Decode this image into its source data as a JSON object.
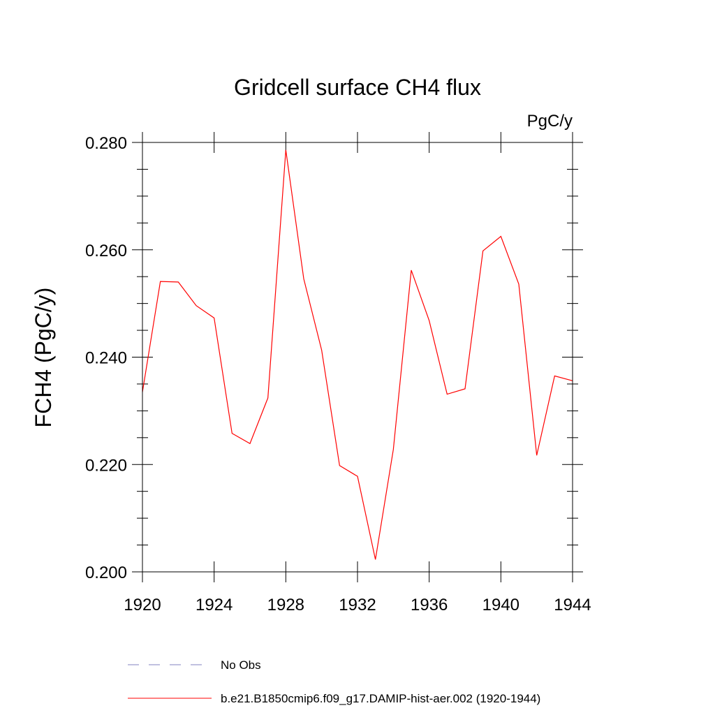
{
  "chart_data": {
    "type": "line",
    "title": "Gridcell surface CH4 flux",
    "units_label": "PgC/y",
    "xlabel": "",
    "ylabel": "FCH4  (PgC/y)",
    "xlim": [
      1920,
      1944
    ],
    "ylim": [
      0.2,
      0.28
    ],
    "x_ticks": [
      1920,
      1924,
      1928,
      1932,
      1936,
      1940,
      1944
    ],
    "y_ticks": [
      "0.200",
      "0.220",
      "0.240",
      "0.260",
      "0.280"
    ],
    "grid": false,
    "legend_position": "bottom",
    "series": [
      {
        "name": "b.e21.B1850cmip6.f09_g17.DAMIP-hist-aer.002 (1920-1944)",
        "color": "#ff0000",
        "style": "solid",
        "x": [
          1920,
          1921,
          1922,
          1923,
          1924,
          1925,
          1926,
          1927,
          1928,
          1929,
          1930,
          1931,
          1932,
          1933,
          1934,
          1935,
          1936,
          1937,
          1938,
          1939,
          1940,
          1941,
          1942,
          1943,
          1944
        ],
        "values": [
          0.2335,
          0.2541,
          0.254,
          0.2496,
          0.2473,
          0.2258,
          0.2239,
          0.2324,
          0.2786,
          0.2546,
          0.2413,
          0.2198,
          0.2178,
          0.2023,
          0.2228,
          0.2562,
          0.2468,
          0.2331,
          0.2341,
          0.2598,
          0.2625,
          0.2536,
          0.2217,
          0.2365,
          0.2356
        ]
      }
    ],
    "legend": [
      {
        "label": "No Obs",
        "color": "#8080c0",
        "style": "dashed"
      },
      {
        "label": "b.e21.B1850cmip6.f09_g17.DAMIP-hist-aer.002 (1920-1944)",
        "color": "#ff0000",
        "style": "solid"
      }
    ]
  }
}
